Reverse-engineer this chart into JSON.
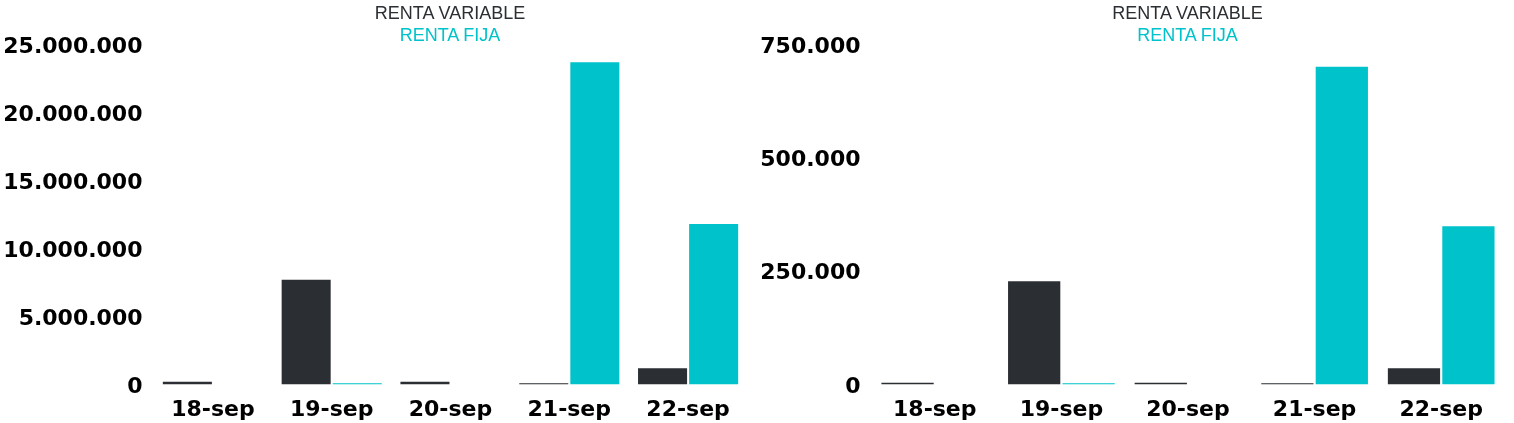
{
  "chart_data": [
    {
      "type": "bar",
      "categories": [
        "18-sep",
        "19-sep",
        "20-sep",
        "21-sep",
        "22-sep"
      ],
      "series": [
        {
          "name": "RENTA VARIABLE",
          "color": "#2b2f33",
          "values": [
            200000,
            7700000,
            200000,
            100000,
            1200000
          ]
        },
        {
          "name": "RENTA FIJA",
          "color": "#00c2cb",
          "values": [
            null,
            100000,
            null,
            23700000,
            11800000
          ]
        }
      ],
      "ylim": [
        0,
        25000000
      ],
      "yticks": [
        {
          "value": 0,
          "label": "0"
        },
        {
          "value": 5000000,
          "label": "5.000.000"
        },
        {
          "value": 10000000,
          "label": "10.000.000"
        },
        {
          "value": 15000000,
          "label": "15.000.000"
        },
        {
          "value": 20000000,
          "label": "20.000.000"
        },
        {
          "value": 25000000,
          "label": "25.000.000"
        }
      ],
      "grid": false
    },
    {
      "type": "bar",
      "categories": [
        "18-sep",
        "19-sep",
        "20-sep",
        "21-sep",
        "22-sep"
      ],
      "series": [
        {
          "name": "RENTA VARIABLE",
          "color": "#2b2f33",
          "values": [
            4000,
            228000,
            4000,
            3000,
            36000
          ]
        },
        {
          "name": "RENTA FIJA",
          "color": "#00c2cb",
          "values": [
            null,
            3000,
            null,
            701000,
            349000
          ]
        }
      ],
      "ylim": [
        0,
        750000
      ],
      "yticks": [
        {
          "value": 0,
          "label": "0"
        },
        {
          "value": 250000,
          "label": "250.000"
        },
        {
          "value": 500000,
          "label": "500.000"
        },
        {
          "value": 750000,
          "label": "750.000"
        }
      ],
      "grid": false
    }
  ]
}
